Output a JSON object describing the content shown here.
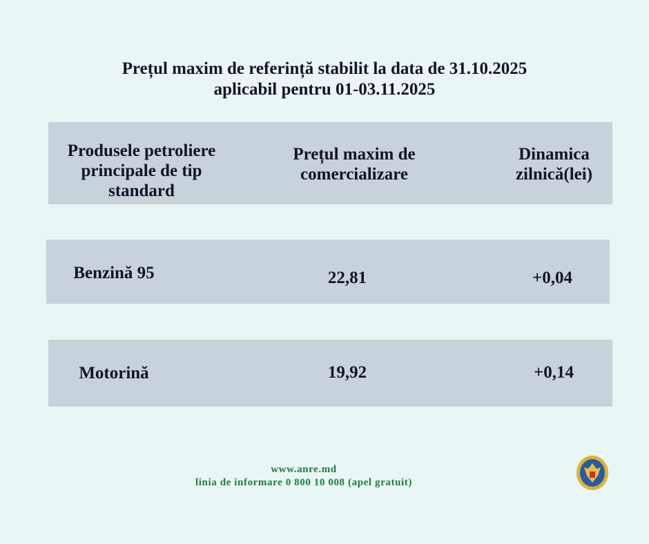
{
  "title": {
    "line1": "Prețul maxim de referință stabilit la data de 31.10.2025",
    "line2": "aplicabil pentru 01-03.11.2025"
  },
  "table": {
    "headers": [
      "Produsele petroliere principale de tip standard",
      "Prețul maxim de comercializare",
      "Dinamica zilnică(lei)"
    ],
    "rows": [
      {
        "product": "Benzină 95",
        "price": "22,81",
        "change": "+0,04"
      },
      {
        "product": "Motorină",
        "price": "19,92",
        "change": "+0,14"
      }
    ]
  },
  "footer": {
    "website": "www.anre.md",
    "hotline": "linia de informare 0 800 10 008 (apel gratuit)"
  },
  "logo": {
    "icon": "moldova-coat-of-arms-seal-icon"
  },
  "colors": {
    "background": "#e9f6f5",
    "bar": "#c8d2da",
    "footer_text": "#1f7a43"
  }
}
